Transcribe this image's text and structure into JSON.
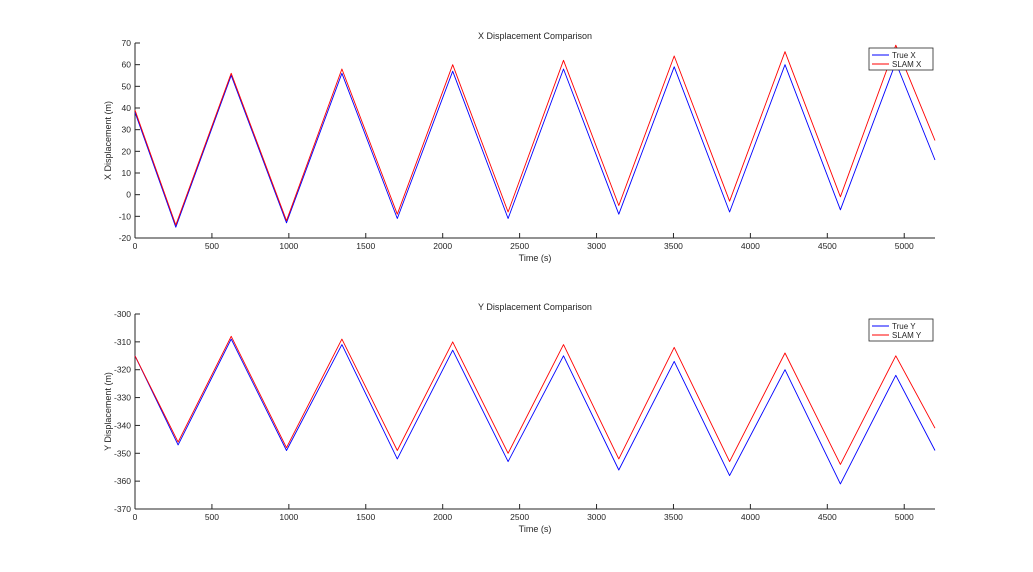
{
  "chart_data": [
    {
      "type": "line",
      "title": "X Displacement Comparison",
      "xlabel": "Time (s)",
      "ylabel": "X Displacement (m)",
      "xlim": [
        0,
        5200
      ],
      "ylim": [
        -20,
        70
      ],
      "xticks": [
        0,
        500,
        1000,
        1500,
        2000,
        2500,
        3000,
        3500,
        4000,
        4500,
        5000
      ],
      "yticks": [
        -20,
        -10,
        0,
        10,
        20,
        30,
        40,
        50,
        60,
        70
      ],
      "grid": false,
      "legend": "top-right",
      "series": [
        {
          "name": "True X",
          "color": "#0000ff",
          "x": [
            0,
            265,
            625,
            985,
            1345,
            1705,
            2065,
            2425,
            2785,
            3145,
            3505,
            3865,
            4225,
            4585,
            4945,
            5200
          ],
          "y": [
            38,
            -15,
            55,
            -13,
            56,
            -11,
            57,
            -11,
            58,
            -9,
            59,
            -8,
            60,
            -7,
            61,
            16
          ]
        },
        {
          "name": "SLAM X",
          "color": "#ff0000",
          "x": [
            0,
            265,
            625,
            985,
            1345,
            1705,
            2065,
            2425,
            2785,
            3145,
            3505,
            3865,
            4225,
            4585,
            4945,
            5200
          ],
          "y": [
            39,
            -14,
            56,
            -12,
            58,
            -9,
            60,
            -8,
            62,
            -5,
            64,
            -3,
            66,
            -1,
            69,
            25
          ]
        }
      ]
    },
    {
      "type": "line",
      "title": "Y Displacement Comparison",
      "xlabel": "Time (s)",
      "ylabel": "Y Displacement (m)",
      "xlim": [
        0,
        5200
      ],
      "ylim": [
        -370,
        -300
      ],
      "xticks": [
        0,
        500,
        1000,
        1500,
        2000,
        2500,
        3000,
        3500,
        4000,
        4500,
        5000
      ],
      "yticks": [
        -370,
        -360,
        -350,
        -340,
        -330,
        -320,
        -310,
        -300
      ],
      "grid": false,
      "legend": "top-right",
      "series": [
        {
          "name": "True Y",
          "color": "#0000ff",
          "x": [
            0,
            280,
            625,
            985,
            1345,
            1705,
            2065,
            2425,
            2785,
            3145,
            3505,
            3865,
            4225,
            4585,
            4945,
            5200
          ],
          "y": [
            -315,
            -347,
            -309,
            -349,
            -311,
            -352,
            -313,
            -353,
            -315,
            -356,
            -317,
            -358,
            -320,
            -361,
            -322,
            -349
          ]
        },
        {
          "name": "SLAM Y",
          "color": "#ff0000",
          "x": [
            0,
            280,
            625,
            985,
            1345,
            1705,
            2065,
            2425,
            2785,
            3145,
            3505,
            3865,
            4225,
            4585,
            4945,
            5200
          ],
          "y": [
            -315,
            -346,
            -308,
            -348,
            -309,
            -349,
            -310,
            -350,
            -311,
            -352,
            -312,
            -353,
            -314,
            -354,
            -315,
            -341
          ]
        }
      ]
    }
  ]
}
